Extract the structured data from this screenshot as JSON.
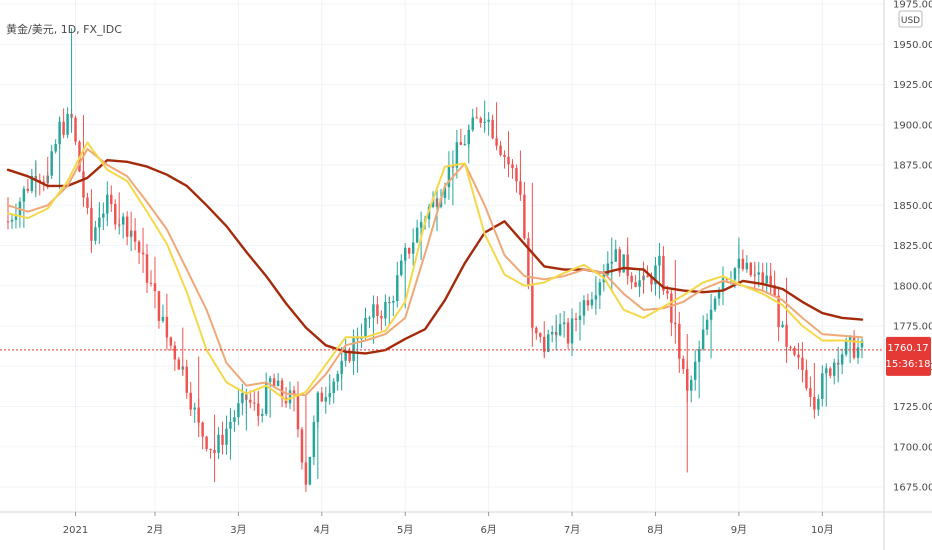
{
  "header": {
    "symbol_line": "黄金/美元, 1D, FX_IDC"
  },
  "axis": {
    "currency": "USD"
  },
  "price_label": {
    "price": "1760.17",
    "countdown": "15:36:18"
  },
  "colors": {
    "up": "#26a69a",
    "down": "#ef5350",
    "ma_long": "#a52a0a",
    "ma_mid": "#f0a878",
    "ma_short": "#f5d84a",
    "grid": "#f0f3f7",
    "last_price": "#e53935"
  },
  "chart_data": {
    "type": "candlestick",
    "title": "黄金/美元, 1D, FX_IDC",
    "ylim": [
      1667,
      1975
    ],
    "y_ticks": [
      "1975.00",
      "1950.00",
      "1925.00",
      "1900.00",
      "1875.00",
      "1850.00",
      "1825.00",
      "1800.00",
      "1775.00",
      "1750.00",
      "1725.00",
      "1700.00",
      "1675.00"
    ],
    "x_ticks": [
      "2021",
      "2月",
      "3月",
      "4月",
      "5月",
      "6月",
      "7月",
      "8月",
      "9月",
      "10月"
    ],
    "grid": true,
    "last_price": 1760.17,
    "series": [
      {
        "name": "",
        "kind": "ma",
        "x": [
          0,
          5,
          10,
          15,
          20,
          25,
          30,
          35,
          40,
          45,
          50,
          55,
          60,
          65,
          70,
          75,
          80,
          85,
          90,
          95,
          100,
          105,
          110,
          115,
          120,
          125,
          130,
          135,
          140,
          145,
          150,
          155,
          160,
          165,
          170,
          175,
          180,
          185,
          190,
          195,
          200,
          205,
          210,
          215
        ],
        "values": [
          1872,
          1868,
          1862,
          1862,
          1867,
          1878,
          1877,
          1874,
          1869,
          1862,
          1850,
          1837,
          1821,
          1806,
          1789,
          1774,
          1763,
          1759,
          1758,
          1760,
          1767,
          1773,
          1791,
          1814,
          1833,
          1840,
          1826,
          1812,
          1810,
          1810,
          1808,
          1811,
          1810,
          1799,
          1797,
          1796,
          1797,
          1803,
          1801,
          1798,
          1790,
          1783,
          1780,
          1779
        ]
      },
      {
        "name": "",
        "kind": "ma",
        "x": [
          0,
          5,
          10,
          15,
          20,
          25,
          30,
          35,
          40,
          45,
          50,
          55,
          60,
          65,
          70,
          75,
          80,
          85,
          90,
          95,
          100,
          105,
          110,
          115,
          120,
          125,
          130,
          135,
          140,
          145,
          150,
          155,
          160,
          165,
          170,
          175,
          180,
          185,
          190,
          195,
          200,
          205,
          210,
          215
        ],
        "values": [
          1850,
          1846,
          1850,
          1862,
          1885,
          1875,
          1868,
          1852,
          1835,
          1810,
          1785,
          1752,
          1738,
          1740,
          1733,
          1732,
          1745,
          1763,
          1766,
          1770,
          1780,
          1820,
          1862,
          1876,
          1850,
          1819,
          1806,
          1804,
          1806,
          1810,
          1808,
          1795,
          1785,
          1786,
          1790,
          1798,
          1803,
          1800,
          1797,
          1791,
          1780,
          1770,
          1769,
          1768
        ]
      },
      {
        "name": "",
        "kind": "ma",
        "x": [
          0,
          5,
          10,
          15,
          20,
          25,
          30,
          35,
          40,
          45,
          50,
          55,
          60,
          65,
          70,
          75,
          80,
          85,
          90,
          95,
          100,
          105,
          110,
          115,
          120,
          125,
          130,
          135,
          140,
          145,
          150,
          155,
          160,
          165,
          170,
          175,
          180,
          185,
          190,
          195,
          200,
          205,
          210,
          215
        ],
        "values": [
          1845,
          1842,
          1848,
          1865,
          1889,
          1872,
          1865,
          1846,
          1826,
          1796,
          1760,
          1740,
          1733,
          1738,
          1729,
          1734,
          1751,
          1768,
          1768,
          1772,
          1790,
          1840,
          1874,
          1876,
          1832,
          1807,
          1800,
          1802,
          1808,
          1813,
          1805,
          1785,
          1780,
          1787,
          1794,
          1802,
          1806,
          1800,
          1795,
          1788,
          1775,
          1766,
          1766,
          1765
        ]
      }
    ],
    "candles": {
      "x": [
        0,
        4,
        7,
        10,
        13,
        16,
        19,
        21,
        23,
        25,
        28,
        31,
        34,
        37,
        40,
        44,
        48,
        52,
        56,
        60,
        63,
        66,
        69,
        72,
        75,
        78,
        81,
        84,
        88,
        92,
        96,
        100,
        104,
        108,
        112,
        116,
        120,
        123,
        126,
        129,
        132,
        135,
        138,
        141,
        144,
        148,
        152,
        156,
        160,
        164,
        168,
        171,
        174,
        177,
        180,
        184,
        188,
        192,
        196,
        200,
        203,
        206,
        209,
        212,
        215
      ],
      "open": [
        1848,
        1840,
        1860,
        1873,
        1865,
        1900,
        1902,
        1855,
        1830,
        1845,
        1852,
        1840,
        1832,
        1812,
        1790,
        1770,
        1752,
        1712,
        1697,
        1715,
        1730,
        1722,
        1739,
        1732,
        1725,
        1683,
        1730,
        1740,
        1750,
        1768,
        1780,
        1790,
        1820,
        1838,
        1855,
        1880,
        1900,
        1910,
        1892,
        1880,
        1860,
        1770,
        1765,
        1775,
        1770,
        1785,
        1800,
        1822,
        1810,
        1798,
        1812,
        1765,
        1735,
        1760,
        1792,
        1806,
        1810,
        1806,
        1800,
        1760,
        1745,
        1730,
        1745,
        1758,
        1760
      ],
      "close": [
        1840,
        1858,
        1872,
        1866,
        1898,
        1903,
        1856,
        1828,
        1846,
        1850,
        1842,
        1835,
        1814,
        1792,
        1768,
        1748,
        1712,
        1697,
        1716,
        1730,
        1720,
        1740,
        1732,
        1728,
        1680,
        1728,
        1740,
        1748,
        1770,
        1782,
        1788,
        1818,
        1840,
        1856,
        1878,
        1895,
        1908,
        1892,
        1876,
        1860,
        1770,
        1762,
        1776,
        1768,
        1786,
        1801,
        1820,
        1810,
        1800,
        1812,
        1770,
        1732,
        1758,
        1790,
        1807,
        1812,
        1805,
        1802,
        1758,
        1748,
        1730,
        1745,
        1758,
        1762,
        1760
      ],
      "high": [
        1855,
        1862,
        1878,
        1880,
        1905,
        1960,
        1906,
        1860,
        1852,
        1856,
        1858,
        1846,
        1836,
        1818,
        1795,
        1774,
        1756,
        1720,
        1722,
        1736,
        1734,
        1744,
        1742,
        1738,
        1732,
        1732,
        1745,
        1752,
        1774,
        1786,
        1793,
        1824,
        1846,
        1860,
        1884,
        1900,
        1915,
        1914,
        1896,
        1884,
        1864,
        1778,
        1782,
        1780,
        1790,
        1806,
        1830,
        1830,
        1815,
        1818,
        1816,
        1770,
        1762,
        1795,
        1812,
        1830,
        1815,
        1810,
        1805,
        1765,
        1752,
        1750,
        1762,
        1766,
        1764
      ],
      "low": [
        1835,
        1836,
        1855,
        1860,
        1860,
        1895,
        1850,
        1822,
        1826,
        1840,
        1836,
        1830,
        1808,
        1786,
        1760,
        1744,
        1706,
        1678,
        1692,
        1710,
        1716,
        1718,
        1728,
        1722,
        1676,
        1680,
        1726,
        1735,
        1746,
        1764,
        1776,
        1786,
        1816,
        1834,
        1850,
        1876,
        1895,
        1886,
        1870,
        1855,
        1762,
        1756,
        1760,
        1764,
        1766,
        1782,
        1796,
        1804,
        1795,
        1792,
        1764,
        1684,
        1730,
        1755,
        1788,
        1800,
        1798,
        1796,
        1752,
        1740,
        1722,
        1725,
        1740,
        1752,
        1755
      ]
    }
  }
}
